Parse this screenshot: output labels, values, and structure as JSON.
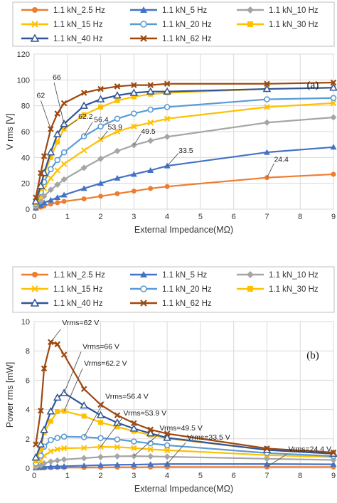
{
  "chart_data": [
    {
      "type": "line",
      "panel_label": "(a)",
      "xlabel": "External Impedance(MΩ)",
      "ylabel": "V rms [V]",
      "xlim": [
        0,
        9
      ],
      "ylim": [
        0,
        120
      ],
      "xticks": [
        "0",
        "1",
        "2",
        "3",
        "4",
        "5",
        "6",
        "7",
        "8",
        "9"
      ],
      "yticks": [
        "0",
        "20",
        "40",
        "60",
        "80",
        "100",
        "120"
      ],
      "grid": true,
      "legend_position": "top",
      "series": [
        {
          "name": "1.1 kN_2.5 Hz",
          "color": "#ED7D31",
          "marker": "circle",
          "x": [
            0.05,
            0.2,
            0.3,
            0.5,
            0.7,
            0.9,
            1.5,
            2,
            2.5,
            3,
            3.5,
            4,
            7,
            9
          ],
          "y": [
            0.5,
            1.5,
            2.5,
            4,
            5,
            6,
            8,
            10,
            12,
            14,
            16,
            17.5,
            24.4,
            27
          ]
        },
        {
          "name": "1.1 kN_5 Hz",
          "color": "#4472C4",
          "marker": "triangle",
          "x": [
            0.05,
            0.2,
            0.3,
            0.5,
            0.7,
            0.9,
            1.5,
            2,
            2.5,
            3,
            3.5,
            4,
            7,
            9
          ],
          "y": [
            1,
            3,
            5,
            7,
            9,
            11,
            16,
            20,
            24,
            27,
            30,
            33.5,
            44,
            48
          ]
        },
        {
          "name": "1.1 kN_10 Hz",
          "color": "#A5A5A5",
          "marker": "diamond",
          "x": [
            0.05,
            0.2,
            0.3,
            0.5,
            0.7,
            0.9,
            1.5,
            2,
            2.5,
            3,
            3.5,
            4,
            7,
            9
          ],
          "y": [
            2,
            6,
            10,
            15,
            19,
            23,
            32,
            39,
            45,
            49.5,
            53,
            56,
            67,
            71
          ]
        },
        {
          "name": "1.1 kN_15 Hz",
          "color": "#FFC000",
          "marker": "cross",
          "x": [
            0.05,
            0.2,
            0.3,
            0.5,
            0.7,
            0.9,
            1.5,
            2,
            2.5,
            3,
            3.5,
            4,
            7,
            9
          ],
          "y": [
            3,
            10,
            16,
            24,
            30,
            35,
            45.5,
            53.9,
            60,
            64,
            67,
            70,
            79,
            82
          ]
        },
        {
          "name": "1.1 kN_20 Hz",
          "color": "#5B9BD5",
          "marker": "open-circle",
          "x": [
            0.05,
            0.2,
            0.3,
            0.5,
            0.7,
            0.9,
            1.5,
            2,
            2.5,
            3,
            3.5,
            4,
            7,
            9
          ],
          "y": [
            4,
            13,
            21,
            31,
            38,
            44,
            56.4,
            64,
            70,
            74,
            77,
            79,
            85,
            86
          ]
        },
        {
          "name": "1.1 kN_30 Hz",
          "color": "#FFC000",
          "marker": "square",
          "x": [
            0.05,
            0.2,
            0.3,
            0.5,
            0.7,
            0.9,
            1.5,
            2,
            2.5,
            3,
            3.5,
            4,
            7,
            9
          ],
          "y": [
            5,
            16,
            27,
            40,
            52,
            62.2,
            73,
            79,
            84,
            87,
            89,
            90,
            93,
            94
          ]
        },
        {
          "name": "1.1 kN_40 Hz",
          "color": "#2F5597",
          "marker": "open-triangle",
          "x": [
            0.05,
            0.2,
            0.3,
            0.5,
            0.7,
            0.9,
            1.5,
            2,
            2.5,
            3,
            3.5,
            4,
            7,
            9
          ],
          "y": [
            6,
            18,
            28,
            44,
            58,
            66,
            80,
            85,
            88,
            90,
            91,
            91,
            93,
            94
          ]
        },
        {
          "name": "1.1 kN_62 Hz",
          "color": "#9E480E",
          "marker": "x",
          "x": [
            0.05,
            0.2,
            0.3,
            0.5,
            0.7,
            0.9,
            1.5,
            2,
            2.5,
            3,
            3.5,
            4,
            7,
            9
          ],
          "y": [
            9,
            28,
            41,
            62,
            74,
            82,
            90,
            93,
            95,
            96,
            96,
            97,
            97,
            98
          ]
        }
      ],
      "annotations": [
        {
          "text": "62",
          "x": 0.5,
          "y": 62
        },
        {
          "text": "66",
          "x": 0.9,
          "y": 66
        },
        {
          "text": "62.2",
          "x": 0.9,
          "y": 62.2
        },
        {
          "text": "56.4",
          "x": 1.5,
          "y": 56.4
        },
        {
          "text": "53.9",
          "x": 2,
          "y": 53.9
        },
        {
          "text": "49.5",
          "x": 3,
          "y": 49.5
        },
        {
          "text": "33.5",
          "x": 4,
          "y": 33.5
        },
        {
          "text": "24.4",
          "x": 7,
          "y": 24.4
        }
      ]
    },
    {
      "type": "line",
      "panel_label": "(b)",
      "xlabel": "External Impedance(MΩ)",
      "ylabel": "Power rms [mW]",
      "xlim": [
        0,
        9
      ],
      "ylim": [
        0,
        10
      ],
      "xticks": [
        "0",
        "1",
        "2",
        "3",
        "4",
        "5",
        "6",
        "7",
        "8",
        "9"
      ],
      "yticks": [
        "0",
        "2",
        "4",
        "6",
        "8",
        "10"
      ],
      "grid": true,
      "legend_position": "top",
      "series": [
        {
          "name": "1.1 kN_2.5 Hz",
          "color": "#ED7D31",
          "marker": "circle",
          "x": [
            0.05,
            0.2,
            0.3,
            0.5,
            0.7,
            0.9,
            1.5,
            2,
            2.5,
            3,
            3.5,
            4,
            7,
            9
          ],
          "y": [
            0.01,
            0.01,
            0.02,
            0.03,
            0.04,
            0.04,
            0.04,
            0.05,
            0.06,
            0.06,
            0.07,
            0.08,
            0.08,
            0.08
          ]
        },
        {
          "name": "1.1 kN_5 Hz",
          "color": "#4472C4",
          "marker": "triangle",
          "x": [
            0.05,
            0.2,
            0.3,
            0.5,
            0.7,
            0.9,
            1.5,
            2,
            2.5,
            3,
            3.5,
            4,
            7,
            9
          ],
          "y": [
            0.02,
            0.05,
            0.08,
            0.1,
            0.12,
            0.13,
            0.17,
            0.2,
            0.23,
            0.24,
            0.26,
            0.28,
            0.28,
            0.26
          ]
        },
        {
          "name": "1.1 kN_10 Hz",
          "color": "#A5A5A5",
          "marker": "diamond",
          "x": [
            0.05,
            0.2,
            0.3,
            0.5,
            0.7,
            0.9,
            1.5,
            2,
            2.5,
            3,
            3.5,
            4,
            7,
            9
          ],
          "y": [
            0.08,
            0.18,
            0.33,
            0.45,
            0.52,
            0.59,
            0.68,
            0.76,
            0.81,
            0.82,
            0.8,
            0.78,
            0.64,
            0.56
          ]
        },
        {
          "name": "1.1 kN_15 Hz",
          "color": "#FFC000",
          "marker": "cross",
          "x": [
            0.05,
            0.2,
            0.3,
            0.5,
            0.7,
            0.9,
            1.5,
            2,
            2.5,
            3,
            3.5,
            4,
            7,
            9
          ],
          "y": [
            0.18,
            0.5,
            0.85,
            1.15,
            1.29,
            1.36,
            1.38,
            1.45,
            1.44,
            1.37,
            1.28,
            1.22,
            0.89,
            0.75
          ]
        },
        {
          "name": "1.1 kN_20 Hz",
          "color": "#5B9BD5",
          "marker": "open-circle",
          "x": [
            0.05,
            0.2,
            0.3,
            0.5,
            0.7,
            0.9,
            1.5,
            2,
            2.5,
            3,
            3.5,
            4,
            7,
            9
          ],
          "y": [
            0.32,
            0.85,
            1.47,
            1.92,
            2.06,
            2.15,
            2.12,
            2.05,
            1.96,
            1.82,
            1.69,
            1.56,
            1.03,
            0.82
          ]
        },
        {
          "name": "1.1 kN_30 Hz",
          "color": "#FFC000",
          "marker": "square",
          "x": [
            0.05,
            0.2,
            0.3,
            0.5,
            0.7,
            0.9,
            1.5,
            2,
            2.5,
            3,
            3.5,
            4,
            7,
            9
          ],
          "y": [
            0.5,
            1.3,
            2.43,
            3.2,
            3.86,
            3.89,
            3.55,
            3.12,
            2.82,
            2.52,
            2.26,
            2.03,
            1.24,
            0.98
          ]
        },
        {
          "name": "1.1 kN_40 Hz",
          "color": "#2F5597",
          "marker": "open-triangle",
          "x": [
            0.05,
            0.2,
            0.3,
            0.5,
            0.7,
            0.9,
            1.5,
            2,
            2.5,
            3,
            3.5,
            4,
            7,
            9
          ],
          "y": [
            0.72,
            1.62,
            2.61,
            3.87,
            4.81,
            5.13,
            4.27,
            3.61,
            3.1,
            2.7,
            2.37,
            2.07,
            1.24,
            0.98
          ]
        },
        {
          "name": "1.1 kN_62 Hz",
          "color": "#9E480E",
          "marker": "x",
          "x": [
            0.05,
            0.2,
            0.3,
            0.5,
            0.7,
            0.9,
            1.5,
            2,
            2.5,
            3,
            3.5,
            4,
            7,
            9
          ],
          "y": [
            1.62,
            3.92,
            6.8,
            8.6,
            8.45,
            7.74,
            5.4,
            4.33,
            3.61,
            3.07,
            2.63,
            2.35,
            1.34,
            1.07
          ]
        }
      ],
      "annotations": [
        {
          "text": "Vrms=62 V",
          "x": 0.5,
          "y": 8.6
        },
        {
          "text": "Vrms=66 V",
          "x": 0.9,
          "y": 5.13
        },
        {
          "text": "Vrms=62.2 V",
          "x": 0.9,
          "y": 3.89
        },
        {
          "text": "Vrms=56.4 V",
          "x": 1.5,
          "y": 2.12
        },
        {
          "text": "Vrms=53.9 V",
          "x": 2,
          "y": 1.45
        },
        {
          "text": "Vrms=49.5 V",
          "x": 3,
          "y": 0.82
        },
        {
          "text": "Vrms=33.5 V",
          "x": 4,
          "y": 0.28
        },
        {
          "text": "Vrms=24.4 V",
          "x": 7,
          "y": 0.08
        }
      ]
    }
  ]
}
